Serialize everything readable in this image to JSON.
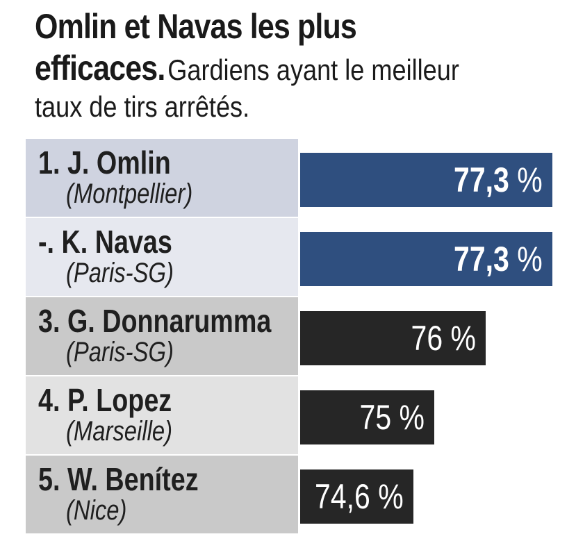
{
  "title": {
    "headline_line1": "Omlin et Navas les plus",
    "headline_line2": "efficaces.",
    "subtitle_line2": "Gardiens ayant le meilleur",
    "subtitle_line3": "taux de tirs arrêtés."
  },
  "colors": {
    "top_bar": "#2f4f7f",
    "other_bar": "#262626"
  },
  "chart_data": {
    "type": "bar",
    "orientation": "horizontal",
    "title": "Omlin et Navas les plus efficaces.",
    "subtitle": "Gardiens ayant le meilleur taux de tirs arrêtés.",
    "unit": "%",
    "xlim": [
      0,
      100
    ],
    "categories": [
      "1. J. Omlin",
      "-. K. Navas",
      "3. G. Donnarumma",
      "4. P. Lopez",
      "5. W. Benítez"
    ],
    "clubs": [
      "(Montpellier)",
      "(Paris-SG)",
      "(Paris-SG)",
      "(Marseille)",
      "(Nice)"
    ],
    "values": [
      77.3,
      77.3,
      76,
      75,
      74.6
    ],
    "value_labels": [
      "77,3",
      "77,3",
      "76",
      "75",
      "74,6"
    ],
    "highlight": [
      true,
      true,
      false,
      false,
      false
    ]
  }
}
